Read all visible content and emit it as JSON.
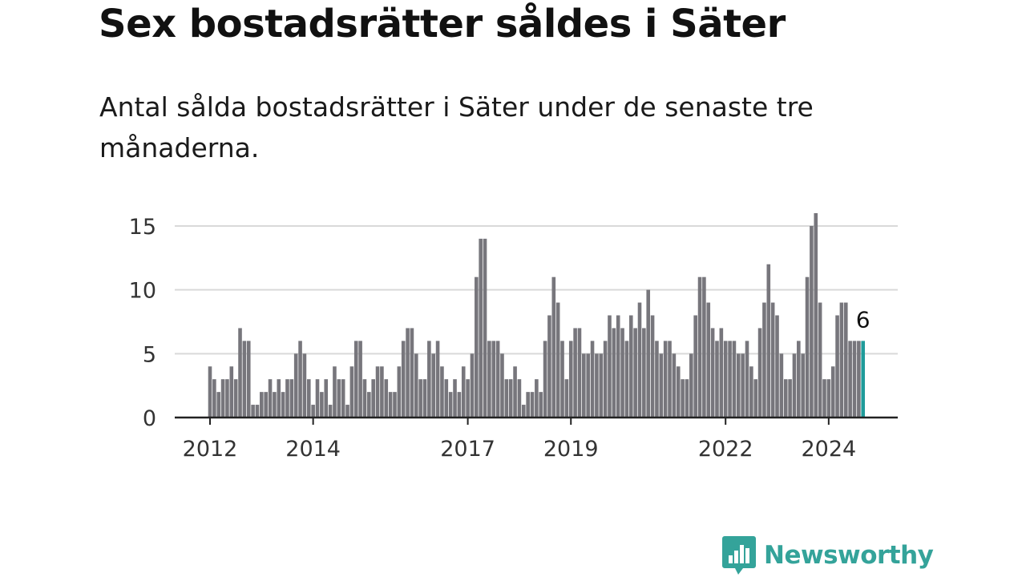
{
  "title": "Sex bostadsrätter såldes i Säter",
  "subtitle": "Antal sålda bostadsrätter i Säter under de senaste tre månaderna.",
  "brand": {
    "name": "Newsworthy",
    "color": "#34a39a"
  },
  "colors": {
    "bar": "#77767c",
    "highlight": "#1f9b9a",
    "grid": "#d9d9d9",
    "axis": "#222222"
  },
  "chart_data": {
    "type": "bar",
    "title": "Sex bostadsrätter såldes i Säter",
    "xlabel": "",
    "ylabel": "",
    "ylim": [
      0,
      16
    ],
    "yticks": [
      0,
      5,
      10,
      15
    ],
    "grid": true,
    "start": {
      "year": 2012,
      "month": 1
    },
    "x_tick_labels": [
      {
        "label": "2012",
        "index": 0
      },
      {
        "label": "2014",
        "index": 24
      },
      {
        "label": "2017",
        "index": 60
      },
      {
        "label": "2019",
        "index": 84
      },
      {
        "label": "2022",
        "index": 120
      },
      {
        "label": "2024",
        "index": 144
      }
    ],
    "values": [
      4,
      3,
      2,
      3,
      3,
      4,
      3,
      7,
      6,
      6,
      1,
      1,
      2,
      2,
      3,
      2,
      3,
      2,
      3,
      3,
      5,
      6,
      5,
      3,
      1,
      3,
      2,
      3,
      1,
      4,
      3,
      3,
      1,
      4,
      6,
      6,
      3,
      2,
      3,
      4,
      4,
      3,
      2,
      2,
      4,
      6,
      7,
      7,
      5,
      3,
      3,
      6,
      5,
      6,
      4,
      3,
      2,
      3,
      2,
      4,
      3,
      5,
      11,
      14,
      14,
      6,
      6,
      6,
      5,
      3,
      3,
      4,
      3,
      1,
      2,
      2,
      3,
      2,
      6,
      8,
      11,
      9,
      6,
      3,
      6,
      7,
      7,
      5,
      5,
      6,
      5,
      5,
      6,
      8,
      7,
      8,
      7,
      6,
      8,
      7,
      9,
      7,
      10,
      8,
      6,
      5,
      6,
      6,
      5,
      4,
      3,
      3,
      5,
      8,
      11,
      11,
      9,
      7,
      6,
      7,
      6,
      6,
      6,
      5,
      5,
      6,
      4,
      3,
      7,
      9,
      12,
      9,
      8,
      5,
      3,
      3,
      5,
      6,
      5,
      11,
      15,
      16,
      9,
      3,
      3,
      4,
      8,
      9,
      9,
      6,
      6,
      6,
      6
    ],
    "highlight_index": 152,
    "highlight_label": "6"
  }
}
